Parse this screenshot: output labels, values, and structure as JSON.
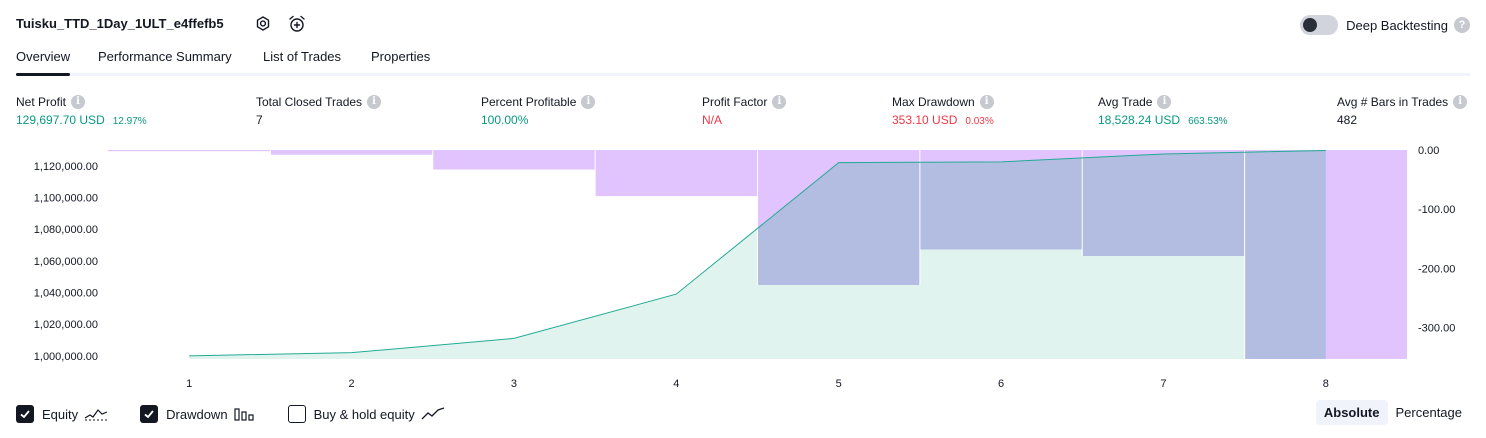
{
  "header": {
    "title": "Tuisku_TTD_1Day_1ULT_e4ffefb5",
    "settings_icon": "gear-icon",
    "alert_icon": "alarm-clock-plus-icon",
    "deep_backtesting_label": "Deep Backtesting",
    "deep_backtesting_on": false,
    "help_glyph": "?"
  },
  "tabs": [
    {
      "label": "Overview",
      "active": true
    },
    {
      "label": "Performance Summary",
      "active": false
    },
    {
      "label": "List of Trades",
      "active": false
    },
    {
      "label": "Properties",
      "active": false
    }
  ],
  "metrics": {
    "info_glyph": "i",
    "net_profit": {
      "label": "Net Profit",
      "value": "129,697.70 USD",
      "sub": "12.97%",
      "color": "#089981"
    },
    "total_closed_trades": {
      "label": "Total Closed Trades",
      "value": "7"
    },
    "percent_profitable": {
      "label": "Percent Profitable",
      "value": "100.00%",
      "color": "#089981"
    },
    "profit_factor": {
      "label": "Profit Factor",
      "value": "N/A",
      "color": "#f23645"
    },
    "max_drawdown": {
      "label": "Max Drawdown",
      "value": "353.10 USD",
      "sub": "0.03%",
      "color": "#f23645"
    },
    "avg_trade": {
      "label": "Avg Trade",
      "value": "18,528.24 USD",
      "sub": "663.53%",
      "color": "#089981"
    },
    "avg_bars": {
      "label": "Avg # Bars in Trades",
      "value": "482"
    }
  },
  "chart_data": {
    "type": "area",
    "x": [
      1,
      2,
      3,
      4,
      5,
      6,
      7,
      8
    ],
    "equity": [
      1000000,
      1002000,
      1011000,
      1039000,
      1122000,
      1122500,
      1127500,
      1129700
    ],
    "drawdown_bars": [
      {
        "from": 0.5,
        "to": 1.5,
        "value": -2
      },
      {
        "from": 1.5,
        "to": 2.5,
        "value": -8
      },
      {
        "from": 2.5,
        "to": 3.5,
        "value": -33
      },
      {
        "from": 3.5,
        "to": 4.5,
        "value": -78
      },
      {
        "from": 4.5,
        "to": 5.5,
        "value": -228
      },
      {
        "from": 5.5,
        "to": 6.5,
        "value": -168
      },
      {
        "from": 6.5,
        "to": 7.5,
        "value": -179
      },
      {
        "from": 7.5,
        "to": 8.5,
        "value": -353
      }
    ],
    "left_axis": {
      "ylim": [
        998000,
        1130000
      ],
      "ticks": [
        1000000,
        1020000,
        1040000,
        1060000,
        1080000,
        1100000,
        1120000
      ],
      "tick_labels": [
        "1,000,000.00",
        "1,020,000.00",
        "1,040,000.00",
        "1,060,000.00",
        "1,080,000.00",
        "1,100,000.00",
        "1,120,000.00"
      ]
    },
    "right_axis": {
      "ylim": [
        -353.1,
        0
      ],
      "ticks": [
        0,
        -100,
        -200,
        -300
      ],
      "tick_labels": [
        "0.00",
        "-100.00",
        "-200.00",
        "-300.00"
      ]
    },
    "x_tick_labels": [
      "1",
      "2",
      "3",
      "4",
      "5",
      "6",
      "7",
      "8"
    ],
    "xlim": [
      0.5,
      8.5
    ],
    "colors": {
      "equity_line": "#22ab94",
      "equity_fill": "#e1f3ee",
      "drawdown": "#e1c4fd",
      "overlap": "#b2bde1"
    }
  },
  "legend": {
    "items": [
      {
        "label": "Equity",
        "checked": true,
        "icon": "equity-line-icon"
      },
      {
        "label": "Drawdown",
        "checked": true,
        "icon": "drawdown-bars-icon"
      },
      {
        "label": "Buy & hold equity",
        "checked": false,
        "icon": "buy-hold-line-icon"
      }
    ]
  },
  "modes": {
    "absolute": "Absolute",
    "percentage": "Percentage",
    "selected": "Absolute"
  }
}
